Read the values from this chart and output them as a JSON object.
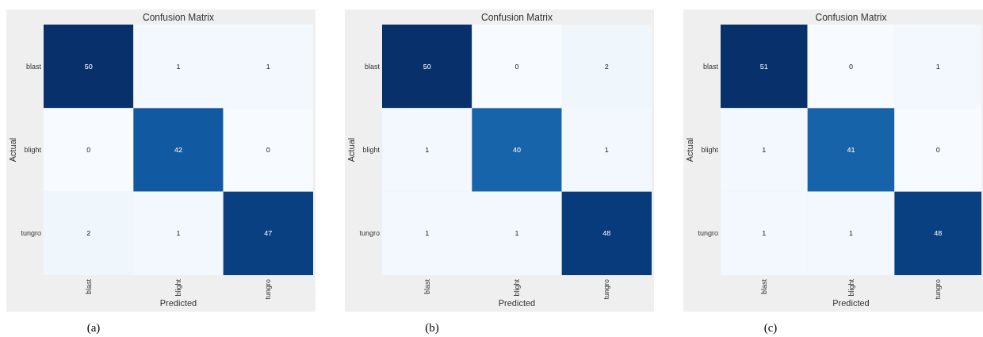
{
  "chart_data": [
    {
      "type": "heatmap",
      "title": "Confusion Matrix",
      "xlabel": "Predicted",
      "ylabel": "Actual",
      "categories": [
        "blast",
        "blight",
        "tungro"
      ],
      "y_categories": [
        "blast",
        "blight",
        "tungro"
      ],
      "cells": [
        [
          50,
          1,
          1
        ],
        [
          0,
          42,
          0
        ],
        [
          2,
          1,
          47
        ]
      ],
      "data_labels": true,
      "annotations": [
        "(a)"
      ]
    },
    {
      "type": "heatmap",
      "title": "Confusion Matrix",
      "xlabel": "Predicted",
      "ylabel": "Actual",
      "categories": [
        "blast",
        "blight",
        "tungro"
      ],
      "y_categories": [
        "blast",
        "blight",
        "tungro"
      ],
      "cells": [
        [
          50,
          0,
          2
        ],
        [
          1,
          40,
          1
        ],
        [
          1,
          1,
          48
        ]
      ],
      "data_labels": true,
      "annotations": [
        "(b)"
      ]
    },
    {
      "type": "heatmap",
      "title": "Confusion Matrix",
      "xlabel": "Predicted",
      "ylabel": "Actual",
      "categories": [
        "blast",
        "blight",
        "tungro"
      ],
      "y_categories": [
        "blast",
        "blight",
        "tungro"
      ],
      "cells": [
        [
          51,
          0,
          1
        ],
        [
          1,
          41,
          0
        ],
        [
          1,
          1,
          48
        ]
      ],
      "data_labels": true,
      "annotations": [
        "(c)"
      ]
    }
  ]
}
